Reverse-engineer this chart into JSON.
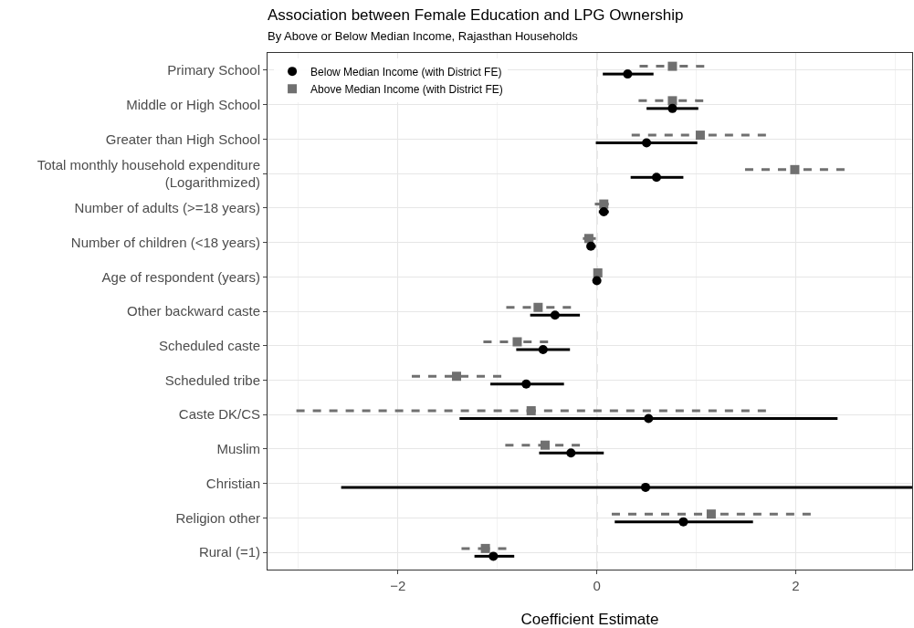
{
  "chart_data": {
    "type": "scatter",
    "orientation": "horizontal",
    "title": "Association between Female Education and LPG Ownership",
    "subtitle": "By Above or Below Median Income, Rajasthan Households",
    "xlabel": "Coefficient Estimate",
    "categories": [
      "Primary School",
      "Middle or High School",
      "Greater than High School",
      "Total monthly household expenditure\n(Logarithmized)",
      "Number of adults (>=18 years)",
      "Number of children (<18 years)",
      "Age of respondent (years)",
      "Other backward caste",
      "Scheduled caste",
      "Scheduled tribe",
      "Caste DK/CS",
      "Muslim",
      "Christian",
      "Religion other",
      "Rural (=1)"
    ],
    "series": [
      {
        "name": "Below Median Income (with District FE)",
        "color": "#000000",
        "marker": "circle",
        "line_style": "solid",
        "values": [
          0.31,
          0.76,
          0.5,
          0.6,
          0.07,
          -0.06,
          0.0,
          -0.42,
          -0.54,
          -0.71,
          0.52,
          -0.26,
          0.49,
          0.87,
          -1.04
        ],
        "errors": [
          [
            0.06,
            0.57
          ],
          [
            0.5,
            1.02
          ],
          [
            -0.01,
            1.01
          ],
          [
            0.34,
            0.87
          ],
          [
            0.02,
            0.12
          ],
          [
            -0.1,
            -0.01
          ],
          null,
          [
            -0.67,
            -0.17
          ],
          [
            -0.81,
            -0.27
          ],
          [
            -1.07,
            -0.33
          ],
          [
            -1.38,
            2.42
          ],
          [
            -0.58,
            0.07
          ],
          [
            -2.57,
            3.17
          ],
          [
            0.18,
            1.57
          ],
          [
            -1.23,
            -0.83
          ]
        ]
      },
      {
        "name": "Above Median Income (with District FE)",
        "color": "#707070",
        "marker": "square",
        "line_style": "dashed",
        "values": [
          0.76,
          0.76,
          1.04,
          1.99,
          0.07,
          -0.08,
          0.01,
          -0.59,
          -0.8,
          -1.41,
          -0.66,
          -0.52,
          null,
          1.15,
          -1.12
        ],
        "errors": [
          [
            0.43,
            1.08
          ],
          [
            0.42,
            1.07
          ],
          [
            0.35,
            1.7
          ],
          [
            1.49,
            2.49
          ],
          [
            -0.02,
            0.12
          ],
          [
            -0.14,
            -0.01
          ],
          null,
          [
            -0.91,
            -0.26
          ],
          [
            -1.14,
            -0.49
          ],
          [
            -1.86,
            -0.96
          ],
          [
            -3.02,
            1.7
          ],
          [
            -0.92,
            -0.17
          ],
          null,
          [
            0.15,
            2.15
          ],
          [
            -1.36,
            -0.91
          ]
        ]
      }
    ],
    "xlim": [
      -3.31,
      3.17
    ],
    "xticks": [
      -2,
      0,
      2
    ],
    "ref_lines": [
      {
        "axis": "x",
        "value": 0,
        "color": "#a0a0a0",
        "line_style": "dashed"
      }
    ],
    "grid": true,
    "legend": "top left"
  }
}
